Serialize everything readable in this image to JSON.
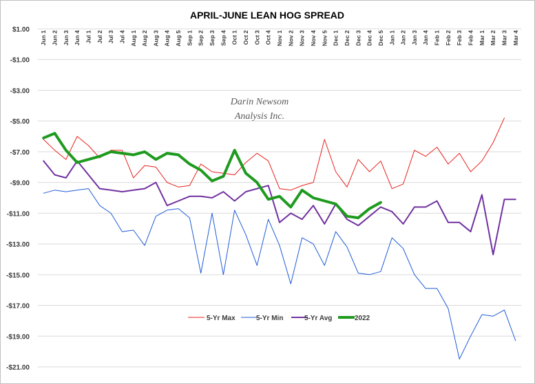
{
  "chart_data": {
    "type": "line",
    "title": "APRIL-JUNE LEAN HOG SPREAD",
    "watermark": [
      "Darin Newsom",
      "Analysis Inc."
    ],
    "ylim": [
      -21,
      1
    ],
    "yticks": [
      "$1.00",
      "-$1.00",
      "-$3.00",
      "-$5.00",
      "-$7.00",
      "-$9.00",
      "-$11.00",
      "-$13.00",
      "-$15.00",
      "-$17.00",
      "-$19.00",
      "-$21.00"
    ],
    "categories": [
      "Jun 1",
      "Jun 2",
      "Jun 3",
      "Jun 4",
      "Jul 1",
      "Jul 2",
      "Jul 3",
      "Jul 4",
      "Aug 1",
      "Aug 2",
      "Aug 3",
      "Aug 4",
      "Aug 5",
      "Sep 1",
      "Sep 2",
      "Sep 3",
      "Sep 4",
      "Oct 1",
      "Oct 2",
      "Oct 3",
      "Oct 4",
      "Nov 1",
      "Nov 2",
      "Nov 3",
      "Nov 4",
      "Nov 5",
      "Dec 1",
      "Dec 2",
      "Dec 3",
      "Dec 4",
      "Dec 5",
      "Jan 1",
      "Jan 2",
      "Jan 3",
      "Jan 4",
      "Feb 1",
      "Feb 2",
      "Feb 3",
      "Feb 4",
      "Mar 1",
      "Mar 2",
      "Mar 3",
      "Mar 4"
    ],
    "legend_position": "bottom-center",
    "grid": true,
    "series": [
      {
        "name": "5-Yr Max",
        "color": "#e8201c",
        "width": 1,
        "values": [
          -6.2,
          -6.9,
          -7.5,
          -6.0,
          -6.6,
          -7.4,
          -6.9,
          -6.9,
          -8.7,
          -7.9,
          -8.0,
          -9.0,
          -9.3,
          -9.2,
          -7.8,
          -8.3,
          -8.4,
          -8.5,
          -7.7,
          -7.1,
          -7.6,
          -9.4,
          -9.5,
          -9.2,
          -9.0,
          -6.2,
          -8.3,
          -9.3,
          -7.5,
          -8.3,
          -7.6,
          -9.4,
          -9.1,
          -6.9,
          -7.3,
          -6.7,
          -7.8,
          -7.1,
          -8.3,
          -7.6,
          -6.4,
          -4.8,
          null
        ]
      },
      {
        "name": "5-Yr Min",
        "color": "#1e5bd6",
        "width": 1,
        "values": [
          -9.7,
          -9.5,
          -9.6,
          -9.5,
          -9.4,
          -10.5,
          -11.0,
          -12.2,
          -12.1,
          -13.1,
          -11.2,
          -10.8,
          -10.7,
          -11.3,
          -14.9,
          -11.0,
          -15.0,
          -10.8,
          -12.4,
          -14.4,
          -11.4,
          -13.1,
          -15.6,
          -12.6,
          -13.0,
          -14.4,
          -12.2,
          -13.2,
          -14.9,
          -15.0,
          -14.8,
          -12.6,
          -13.3,
          -15.0,
          -15.9,
          -15.9,
          -17.2,
          -20.5,
          -19.0,
          -17.6,
          -17.7,
          -17.3,
          -19.3
        ]
      },
      {
        "name": "5-Yr Avg",
        "color": "#7030a0",
        "width": 2,
        "values": [
          -7.6,
          -8.5,
          -8.7,
          -7.6,
          -8.5,
          -9.4,
          -9.5,
          -9.6,
          -9.5,
          -9.4,
          -9.0,
          -10.5,
          -10.2,
          -9.9,
          -9.9,
          -10.0,
          -9.6,
          -10.2,
          -9.6,
          -9.4,
          -9.2,
          -11.6,
          -11.0,
          -11.4,
          -10.5,
          -11.7,
          -10.4,
          -11.4,
          -11.8,
          -11.2,
          -10.6,
          -10.9,
          -11.7,
          -10.6,
          -10.6,
          -10.2,
          -11.6,
          -11.6,
          -12.2,
          -9.8,
          -13.7,
          -10.1,
          -10.1
        ]
      },
      {
        "name": "2022",
        "color": "#1e9a1e",
        "width": 4,
        "values": [
          -6.1,
          -5.8,
          -6.9,
          -7.7,
          -7.5,
          -7.3,
          -7.0,
          -7.1,
          -7.2,
          -7.0,
          -7.5,
          -7.1,
          -7.2,
          -7.8,
          -8.2,
          -8.9,
          -8.6,
          -6.9,
          -8.4,
          -9.0,
          -10.1,
          -9.9,
          -10.6,
          -9.5,
          -10.0,
          -10.2,
          -10.4,
          -11.2,
          -11.3,
          -10.7,
          -10.3,
          null,
          null,
          null,
          null,
          null,
          null,
          null,
          null,
          null,
          null,
          null,
          null
        ]
      }
    ]
  }
}
